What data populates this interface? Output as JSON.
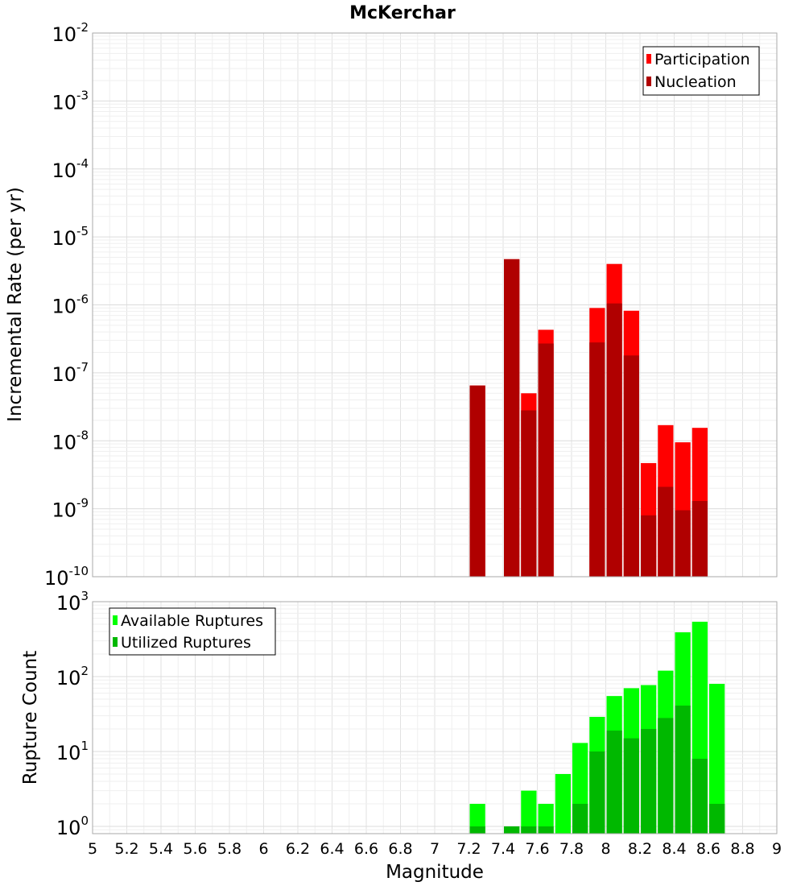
{
  "chart_data": [
    {
      "type": "bar",
      "title": "McKerchar",
      "ylabel": "Incremental Rate (per yr)",
      "xlabel": "",
      "yscale": "log",
      "ylim": [
        1e-10,
        0.01
      ],
      "xlim": [
        5,
        9
      ],
      "grid": true,
      "legend_position": "top-right",
      "x": [
        7.25,
        7.45,
        7.55,
        7.65,
        7.95,
        8.05,
        8.15,
        8.25,
        8.35,
        8.45,
        8.55
      ],
      "series": [
        {
          "name": "Participation",
          "color": "#ff0000",
          "values": [
            6.5e-08,
            4.7e-06,
            5e-08,
            4.3e-07,
            9e-07,
            4e-06,
            8.2e-07,
            4.7e-09,
            1.7e-08,
            9.5e-09,
            1.55e-08
          ]
        },
        {
          "name": "Nucleation",
          "color": "#b00000",
          "values": [
            6.5e-08,
            4.7e-06,
            2.8e-08,
            2.7e-07,
            2.8e-07,
            1.05e-06,
            1.8e-07,
            8e-10,
            2.1e-09,
            9.5e-10,
            1.3e-09
          ]
        }
      ],
      "yticks": [
        {
          "base": "10",
          "exp": "-2"
        },
        {
          "base": "10",
          "exp": "-3"
        },
        {
          "base": "10",
          "exp": "-4"
        },
        {
          "base": "10",
          "exp": "-5"
        },
        {
          "base": "10",
          "exp": "-6"
        },
        {
          "base": "10",
          "exp": "-7"
        },
        {
          "base": "10",
          "exp": "-8"
        },
        {
          "base": "10",
          "exp": "-9"
        },
        {
          "base": "10",
          "exp": "-10"
        }
      ]
    },
    {
      "type": "bar",
      "title": "",
      "ylabel": "Rupture Count",
      "xlabel": "Magnitude",
      "yscale": "log",
      "ylim": [
        0.8,
        1000
      ],
      "xlim": [
        5,
        9
      ],
      "grid": true,
      "legend_position": "top-left",
      "x": [
        7.25,
        7.45,
        7.55,
        7.65,
        7.75,
        7.85,
        7.95,
        8.05,
        8.15,
        8.25,
        8.35,
        8.45,
        8.55,
        8.65
      ],
      "series": [
        {
          "name": "Available Ruptures",
          "color": "#00ff00",
          "values": [
            2,
            1,
            3,
            2,
            5,
            13,
            29,
            55,
            70,
            77,
            120,
            390,
            540,
            80
          ]
        },
        {
          "name": "Utilized Ruptures",
          "color": "#00b800",
          "values": [
            1,
            1,
            1,
            1,
            0,
            2,
            10,
            19,
            15,
            20,
            28,
            41,
            8,
            2
          ]
        }
      ],
      "yticks": [
        {
          "base": "10",
          "exp": "3"
        },
        {
          "base": "10",
          "exp": "2"
        },
        {
          "base": "10",
          "exp": "1"
        },
        {
          "base": "10",
          "exp": "0"
        }
      ],
      "xticks": [
        "5",
        "5.2",
        "5.4",
        "5.6",
        "5.8",
        "6",
        "6.2",
        "6.4",
        "6.6",
        "6.8",
        "7",
        "7.2",
        "7.4",
        "7.6",
        "7.8",
        "8",
        "8.2",
        "8.4",
        "8.6",
        "8.8",
        "9"
      ]
    }
  ]
}
